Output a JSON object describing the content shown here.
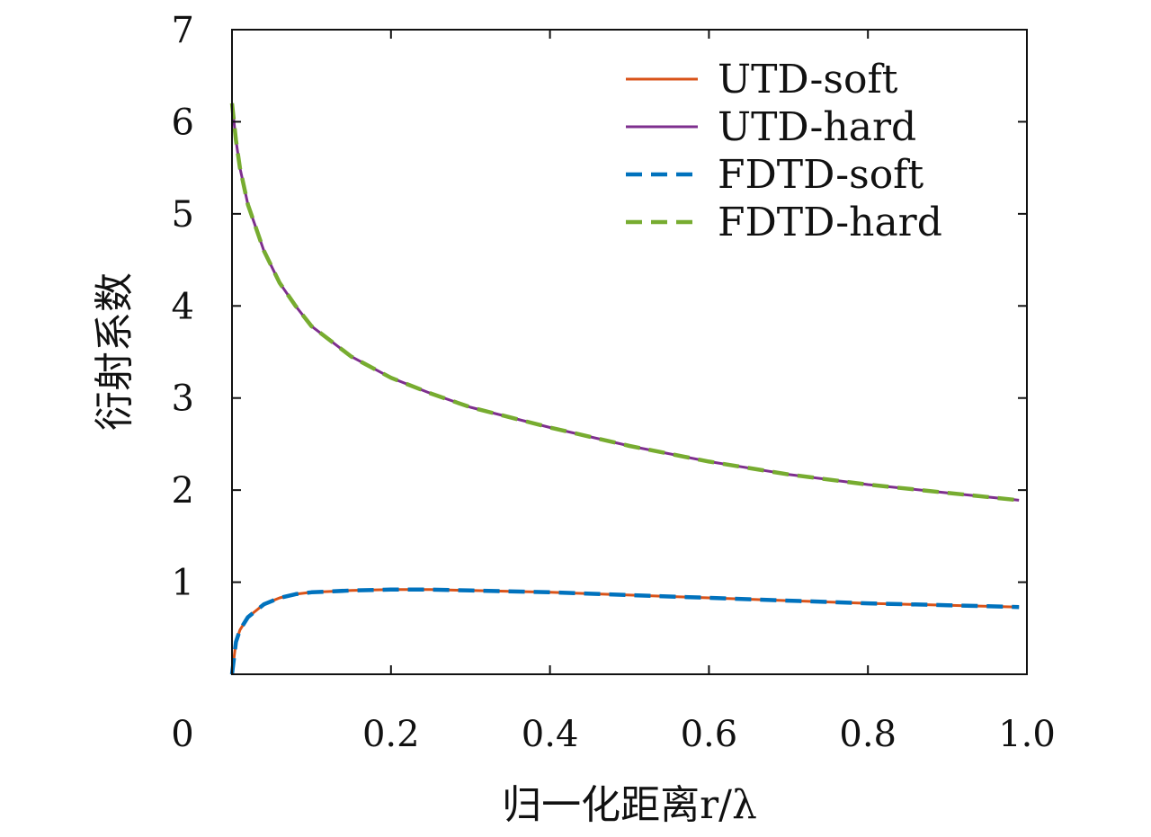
{
  "chart_data": {
    "type": "line",
    "title": "",
    "xlabel": "归一化距离r/λ",
    "ylabel": "衍射系数",
    "xlim": [
      0,
      1.0
    ],
    "ylim": [
      0,
      7
    ],
    "x_ticks": [
      "0",
      "0.2",
      "0.4",
      "0.6",
      "0.8",
      "1.0"
    ],
    "x_tick_values": [
      0,
      0.2,
      0.4,
      0.6,
      0.8,
      1.0
    ],
    "y_ticks": [
      "1",
      "2",
      "3",
      "4",
      "5",
      "6",
      "7"
    ],
    "y_tick_values": [
      1,
      2,
      3,
      4,
      5,
      6,
      7
    ],
    "grid": false,
    "legend_position": "top-right",
    "x": [
      0.0,
      0.005,
      0.01,
      0.02,
      0.04,
      0.06,
      0.08,
      0.1,
      0.15,
      0.2,
      0.25,
      0.3,
      0.4,
      0.5,
      0.6,
      0.7,
      0.8,
      0.9,
      0.99
    ],
    "series": [
      {
        "name": "UTD-soft",
        "color": "#d95319",
        "dash": "solid",
        "values": [
          0.0,
          0.35,
          0.48,
          0.62,
          0.76,
          0.83,
          0.87,
          0.89,
          0.91,
          0.92,
          0.92,
          0.91,
          0.89,
          0.86,
          0.83,
          0.8,
          0.77,
          0.75,
          0.73
        ]
      },
      {
        "name": "UTD-hard",
        "color": "#7e2f8e",
        "dash": "solid",
        "values": [
          6.2,
          5.8,
          5.5,
          5.1,
          4.6,
          4.25,
          4.0,
          3.78,
          3.45,
          3.22,
          3.05,
          2.9,
          2.68,
          2.48,
          2.31,
          2.17,
          2.06,
          1.97,
          1.89
        ]
      },
      {
        "name": "FDTD-soft",
        "color": "#0072bd",
        "dash": "dashed",
        "values": [
          0.0,
          0.35,
          0.48,
          0.62,
          0.76,
          0.83,
          0.87,
          0.89,
          0.91,
          0.92,
          0.92,
          0.91,
          0.89,
          0.86,
          0.83,
          0.8,
          0.77,
          0.75,
          0.73
        ]
      },
      {
        "name": "FDTD-hard",
        "color": "#77ac30",
        "dash": "dashed",
        "values": [
          6.2,
          5.8,
          5.5,
          5.1,
          4.6,
          4.25,
          4.0,
          3.78,
          3.45,
          3.22,
          3.05,
          2.9,
          2.68,
          2.48,
          2.31,
          2.17,
          2.06,
          1.97,
          1.89
        ]
      }
    ]
  }
}
